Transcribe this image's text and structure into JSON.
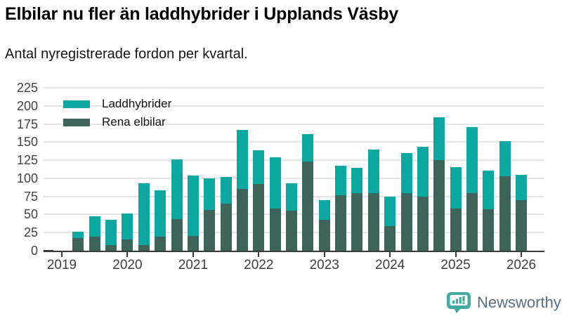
{
  "title": "Elbilar nu fler än laddhybrider i Upplands Väsby",
  "subtitle": "Antal nyregistrerade fordon per kvartal.",
  "legend": [
    {
      "label": "Laddhybrider",
      "color": "#0ba8a2"
    },
    {
      "label": "Rena elbilar",
      "color": "#3d6459"
    }
  ],
  "branding": {
    "name": "Newsworthy",
    "icon": "newsworthy-speech-bubble-bar-chart-icon",
    "text_color": "#547082",
    "icon_color": "#42aaa1"
  },
  "chart_data": {
    "type": "bar",
    "stacked": true,
    "title": "Elbilar nu fler än laddhybrider i Upplands Väsby",
    "subtitle": "Antal nyregistrerade fordon per kvartal.",
    "xlabel": "",
    "ylabel": "",
    "ylim": [
      0,
      225
    ],
    "yticks": [
      0,
      25,
      50,
      75,
      100,
      125,
      150,
      175,
      200,
      225
    ],
    "xticks": [
      "2019",
      "2020",
      "2021",
      "2022",
      "2023",
      "2024",
      "2025",
      "2026"
    ],
    "grid": true,
    "legend_position": "top-left",
    "x": [
      "2019 Q2",
      "2019 Q3",
      "2019 Q4",
      "2020 Q1",
      "2020 Q2",
      "2020 Q3",
      "2020 Q4",
      "2021 Q1",
      "2021 Q2",
      "2021 Q3",
      "2021 Q4",
      "2022 Q1",
      "2022 Q2",
      "2022 Q3",
      "2022 Q4",
      "2023 Q1",
      "2023 Q2",
      "2023 Q3",
      "2023 Q4",
      "2024 Q1",
      "2024 Q2",
      "2024 Q3",
      "2024 Q4",
      "2025 Q1",
      "2025 Q2",
      "2025 Q3",
      "2025 Q4",
      "2026 Q1"
    ],
    "series": [
      {
        "name": "Rena elbilar",
        "color": "#3d6459",
        "values": [
          17,
          19,
          8,
          16,
          8,
          19,
          44,
          20,
          56,
          65,
          85,
          92,
          58,
          55,
          123,
          43,
          77,
          80,
          80,
          34,
          80,
          75,
          125,
          58,
          80,
          57,
          103,
          70
        ]
      },
      {
        "name": "Laddhybrider",
        "color": "#0ba8a2",
        "values": [
          9,
          29,
          35,
          35,
          85,
          64,
          82,
          84,
          44,
          37,
          82,
          47,
          71,
          38,
          38,
          27,
          40,
          34,
          60,
          41,
          55,
          69,
          59,
          57,
          91,
          54,
          48,
          35
        ]
      }
    ]
  }
}
